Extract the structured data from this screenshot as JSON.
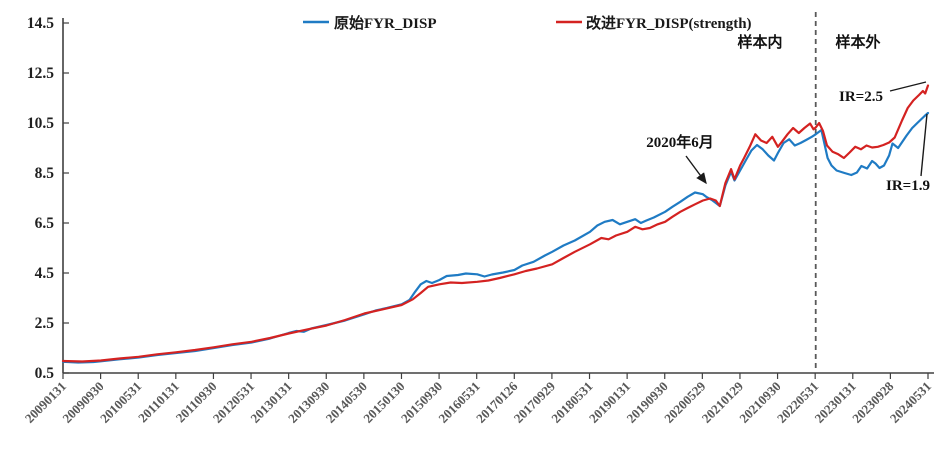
{
  "chart_data": {
    "type": "line",
    "title": "",
    "grid": false,
    "legend_position": "top-center",
    "x_axis": {
      "start_year": 2009.08,
      "end_year": 2024.41,
      "tick_labels": [
        "20090131",
        "20090930",
        "20100531",
        "20110131",
        "20110930",
        "20120531",
        "20130131",
        "20130930",
        "20140530",
        "20150130",
        "20150930",
        "20160531",
        "20170126",
        "20170929",
        "20180531",
        "20190131",
        "20190930",
        "20200529",
        "20210129",
        "20210930",
        "20220531",
        "20230131",
        "20230928",
        "20240531"
      ]
    },
    "y_axis": {
      "min": 0.5,
      "max": 14.5,
      "ticks": [
        0.5,
        2.5,
        4.5,
        6.5,
        8.5,
        10.5,
        12.5,
        14.5
      ]
    },
    "divider": {
      "x_year": 2022.42,
      "style": "dashed",
      "color": "#595959"
    },
    "annotations": {
      "in_sample": "样本内",
      "out_of_sample": "样本外",
      "event": "2020年6月",
      "ir_improved": "IR=2.5",
      "ir_original": "IR=1.9"
    },
    "series": [
      {
        "name": "原始FYR_DISP",
        "color": "#1F7BC4",
        "points": [
          [
            2009.08,
            0.95
          ],
          [
            2009.35,
            0.92
          ],
          [
            2009.62,
            0.94
          ],
          [
            2009.75,
            0.97
          ],
          [
            2010.08,
            1.05
          ],
          [
            2010.42,
            1.12
          ],
          [
            2010.75,
            1.22
          ],
          [
            2011.08,
            1.3
          ],
          [
            2011.42,
            1.38
          ],
          [
            2011.75,
            1.5
          ],
          [
            2012.08,
            1.62
          ],
          [
            2012.42,
            1.72
          ],
          [
            2012.75,
            1.88
          ],
          [
            2013.08,
            2.1
          ],
          [
            2013.22,
            2.18
          ],
          [
            2013.35,
            2.15
          ],
          [
            2013.48,
            2.28
          ],
          [
            2013.75,
            2.42
          ],
          [
            2014.08,
            2.6
          ],
          [
            2014.42,
            2.85
          ],
          [
            2014.62,
            3.0
          ],
          [
            2014.82,
            3.1
          ],
          [
            2015.08,
            3.25
          ],
          [
            2015.22,
            3.42
          ],
          [
            2015.32,
            3.75
          ],
          [
            2015.42,
            4.05
          ],
          [
            2015.52,
            4.18
          ],
          [
            2015.62,
            4.1
          ],
          [
            2015.75,
            4.22
          ],
          [
            2015.88,
            4.38
          ],
          [
            2016.08,
            4.42
          ],
          [
            2016.22,
            4.48
          ],
          [
            2016.42,
            4.45
          ],
          [
            2016.55,
            4.36
          ],
          [
            2016.68,
            4.44
          ],
          [
            2016.88,
            4.52
          ],
          [
            2017.08,
            4.62
          ],
          [
            2017.22,
            4.8
          ],
          [
            2017.42,
            4.95
          ],
          [
            2017.62,
            5.2
          ],
          [
            2017.75,
            5.35
          ],
          [
            2017.95,
            5.6
          ],
          [
            2018.15,
            5.8
          ],
          [
            2018.42,
            6.15
          ],
          [
            2018.55,
            6.4
          ],
          [
            2018.68,
            6.55
          ],
          [
            2018.82,
            6.62
          ],
          [
            2018.95,
            6.45
          ],
          [
            2019.08,
            6.55
          ],
          [
            2019.22,
            6.65
          ],
          [
            2019.32,
            6.5
          ],
          [
            2019.42,
            6.6
          ],
          [
            2019.55,
            6.72
          ],
          [
            2019.75,
            6.95
          ],
          [
            2019.88,
            7.15
          ],
          [
            2020.02,
            7.35
          ],
          [
            2020.15,
            7.55
          ],
          [
            2020.28,
            7.72
          ],
          [
            2020.42,
            7.65
          ],
          [
            2020.48,
            7.55
          ],
          [
            2020.58,
            7.42
          ],
          [
            2020.72,
            7.18
          ],
          [
            2020.82,
            8.0
          ],
          [
            2020.92,
            8.55
          ],
          [
            2020.98,
            8.2
          ],
          [
            2021.08,
            8.6
          ],
          [
            2021.18,
            9.0
          ],
          [
            2021.28,
            9.4
          ],
          [
            2021.38,
            9.62
          ],
          [
            2021.48,
            9.45
          ],
          [
            2021.58,
            9.2
          ],
          [
            2021.68,
            9.0
          ],
          [
            2021.75,
            9.3
          ],
          [
            2021.85,
            9.7
          ],
          [
            2021.95,
            9.85
          ],
          [
            2022.05,
            9.6
          ],
          [
            2022.15,
            9.7
          ],
          [
            2022.25,
            9.82
          ],
          [
            2022.35,
            9.95
          ],
          [
            2022.42,
            10.05
          ],
          [
            2022.52,
            10.22
          ],
          [
            2022.63,
            9.1
          ],
          [
            2022.7,
            8.8
          ],
          [
            2022.79,
            8.6
          ],
          [
            2022.93,
            8.5
          ],
          [
            2023.05,
            8.42
          ],
          [
            2023.15,
            8.52
          ],
          [
            2023.23,
            8.78
          ],
          [
            2023.33,
            8.68
          ],
          [
            2023.42,
            8.98
          ],
          [
            2023.48,
            8.88
          ],
          [
            2023.55,
            8.7
          ],
          [
            2023.63,
            8.8
          ],
          [
            2023.72,
            9.2
          ],
          [
            2023.78,
            9.68
          ],
          [
            2023.88,
            9.5
          ],
          [
            2024.03,
            10.0
          ],
          [
            2024.13,
            10.3
          ],
          [
            2024.22,
            10.5
          ],
          [
            2024.35,
            10.78
          ],
          [
            2024.41,
            10.9
          ]
        ]
      },
      {
        "name": "改进FYR_DISP(strength)",
        "color": "#D42221",
        "points": [
          [
            2009.08,
            0.98
          ],
          [
            2009.42,
            0.96
          ],
          [
            2009.75,
            1.0
          ],
          [
            2010.08,
            1.08
          ],
          [
            2010.42,
            1.15
          ],
          [
            2010.75,
            1.25
          ],
          [
            2011.08,
            1.33
          ],
          [
            2011.42,
            1.42
          ],
          [
            2011.75,
            1.53
          ],
          [
            2012.08,
            1.65
          ],
          [
            2012.42,
            1.75
          ],
          [
            2012.75,
            1.9
          ],
          [
            2013.08,
            2.08
          ],
          [
            2013.42,
            2.25
          ],
          [
            2013.75,
            2.4
          ],
          [
            2014.08,
            2.62
          ],
          [
            2014.42,
            2.88
          ],
          [
            2014.75,
            3.05
          ],
          [
            2015.08,
            3.22
          ],
          [
            2015.28,
            3.45
          ],
          [
            2015.42,
            3.7
          ],
          [
            2015.55,
            3.95
          ],
          [
            2015.75,
            4.05
          ],
          [
            2015.95,
            4.12
          ],
          [
            2016.15,
            4.1
          ],
          [
            2016.42,
            4.15
          ],
          [
            2016.62,
            4.2
          ],
          [
            2016.82,
            4.3
          ],
          [
            2017.08,
            4.45
          ],
          [
            2017.28,
            4.58
          ],
          [
            2017.48,
            4.68
          ],
          [
            2017.75,
            4.85
          ],
          [
            2017.95,
            5.1
          ],
          [
            2018.15,
            5.35
          ],
          [
            2018.42,
            5.65
          ],
          [
            2018.62,
            5.9
          ],
          [
            2018.75,
            5.85
          ],
          [
            2018.88,
            6.0
          ],
          [
            2019.08,
            6.15
          ],
          [
            2019.22,
            6.35
          ],
          [
            2019.35,
            6.25
          ],
          [
            2019.48,
            6.3
          ],
          [
            2019.62,
            6.45
          ],
          [
            2019.75,
            6.55
          ],
          [
            2019.88,
            6.75
          ],
          [
            2020.02,
            6.95
          ],
          [
            2020.15,
            7.1
          ],
          [
            2020.28,
            7.25
          ],
          [
            2020.42,
            7.4
          ],
          [
            2020.55,
            7.48
          ],
          [
            2020.65,
            7.4
          ],
          [
            2020.72,
            7.18
          ],
          [
            2020.82,
            8.1
          ],
          [
            2020.92,
            8.65
          ],
          [
            2020.98,
            8.25
          ],
          [
            2021.08,
            8.8
          ],
          [
            2021.15,
            9.1
          ],
          [
            2021.25,
            9.55
          ],
          [
            2021.35,
            10.05
          ],
          [
            2021.45,
            9.8
          ],
          [
            2021.55,
            9.7
          ],
          [
            2021.65,
            9.95
          ],
          [
            2021.75,
            9.55
          ],
          [
            2021.82,
            9.75
          ],
          [
            2021.92,
            10.05
          ],
          [
            2022.02,
            10.3
          ],
          [
            2022.12,
            10.1
          ],
          [
            2022.22,
            10.3
          ],
          [
            2022.32,
            10.48
          ],
          [
            2022.38,
            10.25
          ],
          [
            2022.42,
            10.32
          ],
          [
            2022.48,
            10.5
          ],
          [
            2022.55,
            10.18
          ],
          [
            2022.62,
            9.6
          ],
          [
            2022.72,
            9.35
          ],
          [
            2022.82,
            9.25
          ],
          [
            2022.92,
            9.1
          ],
          [
            2023.02,
            9.32
          ],
          [
            2023.12,
            9.55
          ],
          [
            2023.22,
            9.45
          ],
          [
            2023.32,
            9.6
          ],
          [
            2023.42,
            9.52
          ],
          [
            2023.52,
            9.55
          ],
          [
            2023.62,
            9.62
          ],
          [
            2023.72,
            9.72
          ],
          [
            2023.82,
            9.92
          ],
          [
            2023.95,
            10.6
          ],
          [
            2024.05,
            11.1
          ],
          [
            2024.15,
            11.4
          ],
          [
            2024.25,
            11.62
          ],
          [
            2024.32,
            11.78
          ],
          [
            2024.36,
            11.68
          ],
          [
            2024.41,
            12.0
          ]
        ]
      }
    ]
  }
}
